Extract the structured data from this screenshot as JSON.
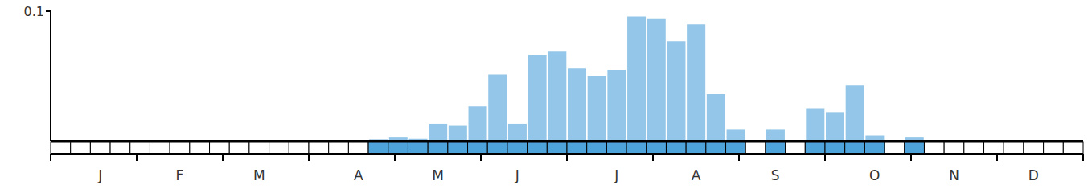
{
  "chart_data": {
    "type": "bar",
    "categories": [
      null,
      null,
      "J",
      null,
      null,
      null,
      "F",
      null,
      null,
      null,
      "M",
      null,
      null,
      null,
      null,
      "A",
      null,
      null,
      null,
      "M",
      null,
      null,
      null,
      "J",
      null,
      null,
      null,
      null,
      "J",
      null,
      null,
      null,
      "A",
      null,
      null,
      null,
      "S",
      null,
      null,
      null,
      null,
      "O",
      null,
      null,
      null,
      "N",
      null,
      null,
      null,
      "D",
      null,
      null
    ],
    "values": [
      0,
      0,
      0,
      0,
      0,
      0,
      0,
      0,
      0,
      0,
      0,
      0,
      0,
      0,
      0,
      0,
      0.001,
      0.003,
      0.002,
      0.013,
      0.012,
      0.027,
      0.051,
      0.013,
      0.066,
      0.069,
      0.056,
      0.05,
      0.055,
      0.096,
      0.094,
      0.077,
      0.09,
      0.036,
      0.009,
      0,
      0.009,
      0,
      0.025,
      0.022,
      0.043,
      0.004,
      0,
      0.003,
      0,
      0,
      0,
      0,
      0,
      0,
      0,
      0
    ],
    "color": "#93c6e8",
    "ylim": [
      0,
      0.1
    ],
    "yticks": [
      0.1
    ]
  }
}
